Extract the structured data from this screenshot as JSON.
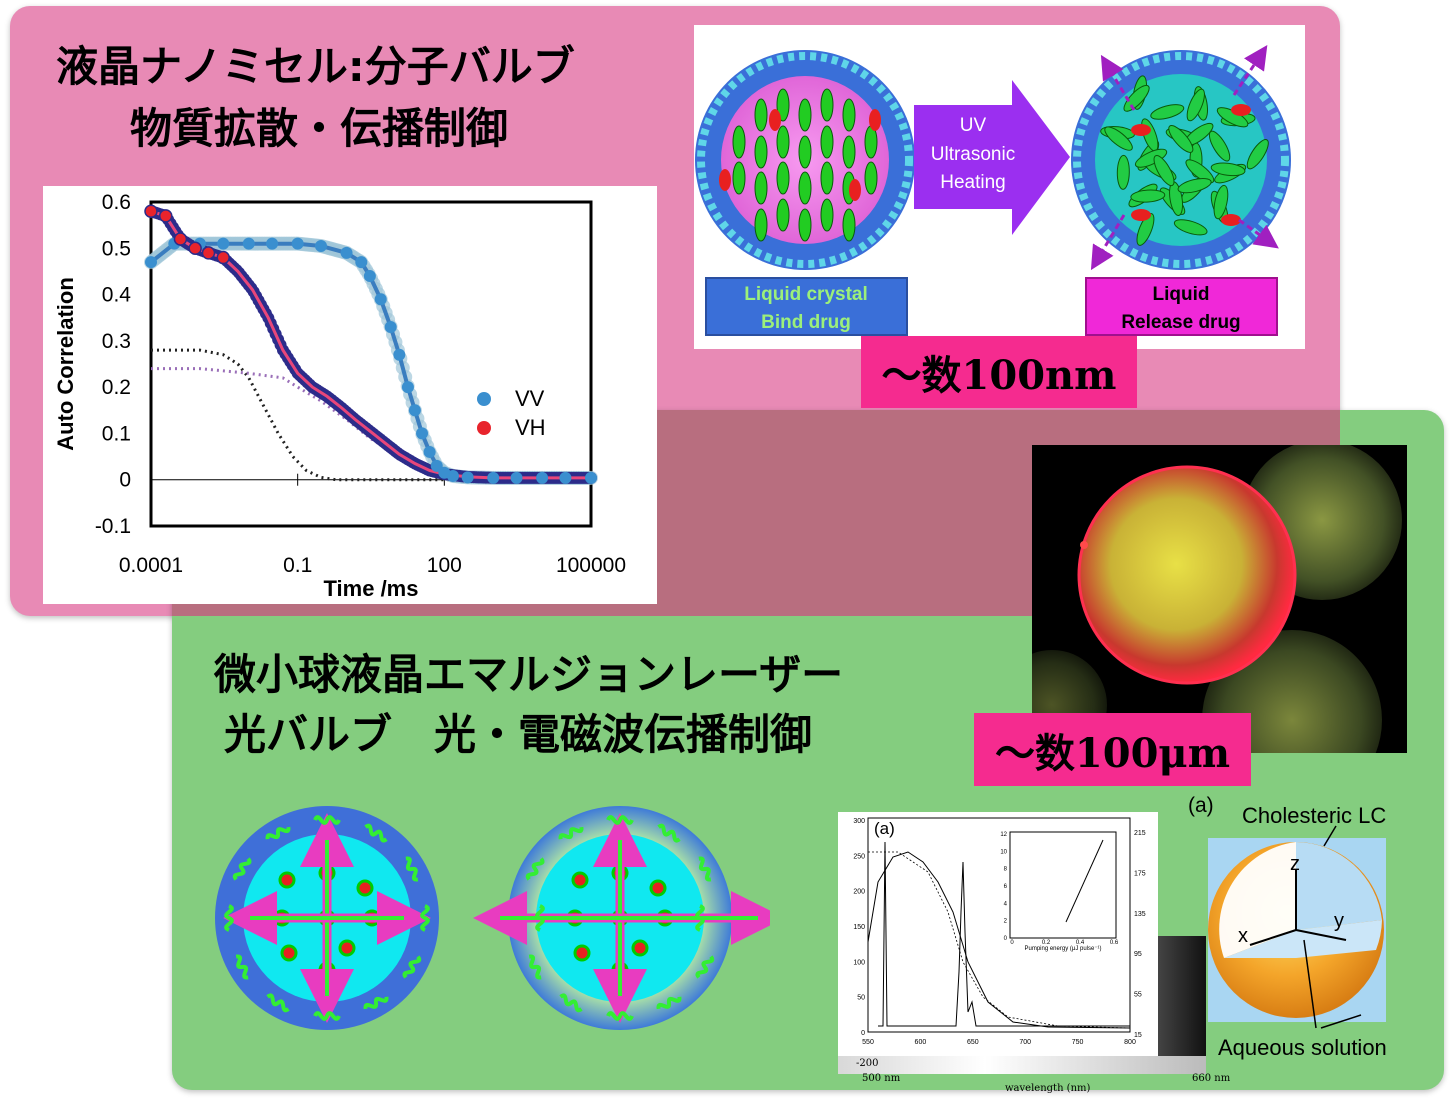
{
  "top_section": {
    "title_line1": "液晶ナノミセル:分子バルブ",
    "title_line2": "物質拡散・伝播制御",
    "size_badge": "～数100nm",
    "diagram": {
      "arrow_labels": [
        "UV",
        "Ultrasonic",
        "Heating"
      ],
      "left_label": [
        "Liquid crystal",
        "Bind drug"
      ],
      "right_label": [
        "Liquid",
        "Release drug"
      ]
    }
  },
  "bottom_section": {
    "title_line1": "微小球液晶エマルジョンレーザー",
    "title_line2": "光バルブ　光・電磁波伝播制御",
    "size_badge": "～数100μm",
    "spectrum_inset": {
      "panel_label": "(a)",
      "x_ticks": [
        "550",
        "600",
        "650",
        "700",
        "750",
        "800"
      ],
      "left_y_ticks": [
        "300",
        "250",
        "200",
        "150",
        "100",
        "50",
        "0"
      ],
      "right_y_ticks": [
        "215",
        "175",
        "135",
        "95",
        "55",
        "15"
      ],
      "inset_x_label": "Pumping energy (μJ pulse⁻¹)",
      "inset_x_ticks": [
        "0",
        "0.2",
        "0.4",
        "0.6"
      ],
      "inset_y_ticks": [
        "12",
        "10",
        "8",
        "6",
        "4",
        "2",
        "0"
      ],
      "strip_labels": [
        "-200",
        "500 nm",
        "wavelength (nm)",
        "660 nm"
      ]
    },
    "shell_diagram": {
      "panel_label": "(a)",
      "label_top": "Cholesteric LC",
      "label_bottom": "Aqueous solution",
      "axes": [
        "z",
        "x",
        "y"
      ]
    }
  },
  "chart_data": {
    "type": "scatter",
    "xscale": "log",
    "xlabel": "Time /ms",
    "ylabel": "Auto Correlation",
    "x_ticks": [
      "0.0001",
      "0.1",
      "100",
      "100000"
    ],
    "y_ticks": [
      "0.6",
      "0.5",
      "0.4",
      "0.3",
      "0.2",
      "0.1",
      "0",
      "-0.1"
    ],
    "xlim": [
      0.0001,
      100000
    ],
    "ylim": [
      -0.1,
      0.6
    ],
    "legend_position": "right",
    "colors": {
      "VV": "#3a8fcf",
      "VH": "#e8242c",
      "VV_fit": "#3a7dbf",
      "VH_fit": "#e8467a"
    },
    "series": [
      {
        "name": "VV",
        "x": [
          0.0001,
          0.0003,
          0.001,
          0.003,
          0.01,
          0.03,
          0.1,
          0.3,
          1,
          2,
          3,
          5,
          8,
          12,
          18,
          25,
          35,
          50,
          70,
          100,
          150,
          300,
          1000,
          3000,
          10000,
          30000,
          100000
        ],
        "y": [
          0.47,
          0.51,
          0.51,
          0.51,
          0.51,
          0.51,
          0.51,
          0.505,
          0.49,
          0.47,
          0.44,
          0.39,
          0.33,
          0.27,
          0.2,
          0.15,
          0.1,
          0.06,
          0.03,
          0.015,
          0.008,
          0.005,
          0.004,
          0.004,
          0.004,
          0.004,
          0.004
        ]
      },
      {
        "name": "VH",
        "x": [
          0.0001,
          0.0002,
          0.0004,
          0.0008,
          0.0015,
          0.003,
          0.006,
          0.012,
          0.025,
          0.05,
          0.1,
          0.2,
          0.4,
          0.8,
          1.5,
          3,
          6,
          12,
          25,
          50,
          100,
          300,
          1000,
          10000,
          100000
        ],
        "y": [
          0.58,
          0.57,
          0.52,
          0.5,
          0.49,
          0.48,
          0.45,
          0.41,
          0.35,
          0.28,
          0.23,
          0.2,
          0.18,
          0.155,
          0.13,
          0.105,
          0.08,
          0.055,
          0.035,
          0.02,
          0.012,
          0.006,
          0.004,
          0.004,
          0.004
        ]
      },
      {
        "name": "",
        "style": "dotted-black",
        "x": [
          0.0001,
          0.001,
          0.003,
          0.006,
          0.01,
          0.02,
          0.04,
          0.08,
          0.15,
          0.3,
          0.6,
          1,
          10,
          100,
          100000
        ],
        "y": [
          0.28,
          0.28,
          0.27,
          0.25,
          0.22,
          0.16,
          0.1,
          0.05,
          0.02,
          0.005,
          0.0,
          0.0,
          0.0,
          0.0,
          0.0
        ]
      },
      {
        "name": "",
        "style": "dotted-purple",
        "x": [
          0.0001,
          0.001,
          0.01,
          0.05,
          0.1,
          0.3,
          1,
          3,
          10,
          30,
          100,
          1000,
          100000
        ],
        "y": [
          0.24,
          0.24,
          0.23,
          0.22,
          0.2,
          0.17,
          0.13,
          0.09,
          0.055,
          0.03,
          0.015,
          0.005,
          0.004
        ]
      }
    ]
  }
}
